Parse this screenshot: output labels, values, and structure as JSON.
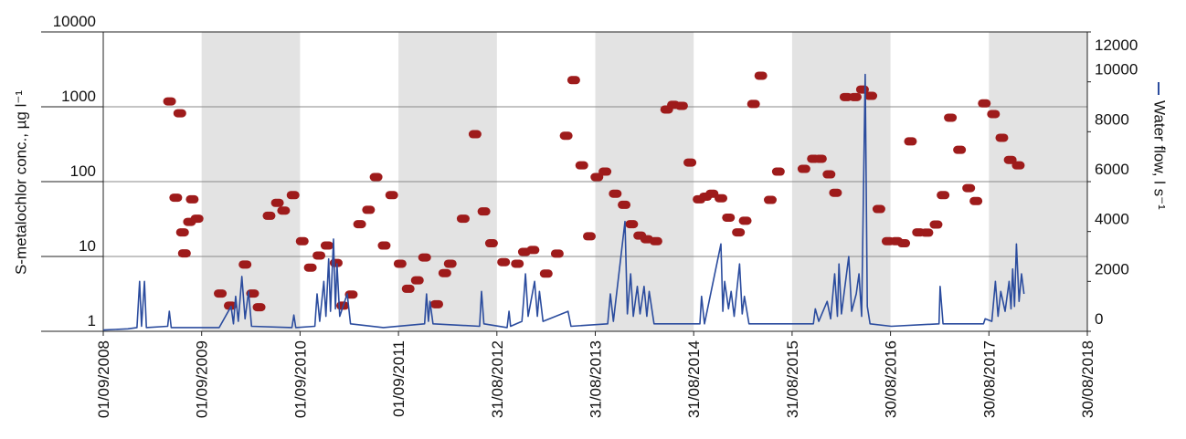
{
  "chart_data": {
    "type": "scatter",
    "y_label": "S-metalochlor conc., µg l⁻¹",
    "xlim": [
      "2008-09-01",
      "2018-08-30"
    ],
    "xticks": [
      {
        "value": "2008-09-01",
        "label": "01/09/2008"
      },
      {
        "value": "2009-09-01",
        "label": "01/09/2009"
      },
      {
        "value": "2010-09-01",
        "label": "01/09/2010"
      },
      {
        "value": "2011-09-01",
        "label": "01/09/2011"
      },
      {
        "value": "2012-08-31",
        "label": "31/08/2012"
      },
      {
        "value": "2013-08-31",
        "label": "31/08/2013"
      },
      {
        "value": "2014-08-31",
        "label": "31/08/2014"
      },
      {
        "value": "2015-08-31",
        "label": "31/08/2015"
      },
      {
        "value": "2016-08-30",
        "label": "30/08/2016"
      },
      {
        "value": "2017-08-30",
        "label": "30/08/2017"
      },
      {
        "value": "2018-08-30",
        "label": "30/08/2018"
      }
    ],
    "ylim": [
      1,
      10000
    ],
    "yticks": [
      1,
      10,
      100,
      1000,
      10000
    ],
    "log_y": true,
    "y2lim": [
      0,
      12000
    ],
    "y2ticks": [
      0,
      2000,
      4000,
      6000,
      8000,
      10000,
      12000
    ],
    "grid": true,
    "series": [
      {
        "type": "scatter",
        "color": "#9e1b1b",
        "x": [
          "2009-05-05",
          "2009-06-12",
          "2009-05-28",
          "2009-06-22",
          "2009-06-29",
          "2009-07-18",
          "2009-07-28",
          "2009-08-15",
          "2009-11-09",
          "2009-12-16",
          "2010-02-09",
          "2010-03-09",
          "2010-04-02",
          "2010-05-09",
          "2010-06-09",
          "2010-07-02",
          "2010-08-06",
          "2010-09-09",
          "2010-10-09",
          "2010-11-10",
          "2010-12-10",
          "2011-01-13",
          "2011-02-06",
          "2011-03-10",
          "2011-04-10",
          "2011-05-13",
          "2011-06-10",
          "2011-07-10",
          "2011-08-07",
          "2011-09-07",
          "2011-10-07",
          "2011-11-10",
          "2011-12-07",
          "2012-01-21",
          "2012-02-20",
          "2012-03-11",
          "2012-04-28",
          "2012-06-11",
          "2012-07-14",
          "2012-08-11",
          "2012-09-25",
          "2012-11-15",
          "2012-12-11",
          "2013-01-12",
          "2013-03-02",
          "2013-04-12",
          "2013-05-15",
          "2013-06-12",
          "2013-07-12",
          "2013-08-09",
          "2013-09-06",
          "2013-10-06",
          "2013-11-13",
          "2013-12-16",
          "2014-01-13",
          "2014-02-12",
          "2014-03-10",
          "2014-04-13",
          "2014-05-23",
          "2014-06-17",
          "2014-07-17",
          "2014-08-17",
          "2014-09-20",
          "2014-10-14",
          "2014-11-07",
          "2014-12-10",
          "2015-01-07",
          "2015-02-13",
          "2015-03-10",
          "2015-04-10",
          "2015-05-07",
          "2015-06-11",
          "2015-07-11",
          "2015-10-14",
          "2015-11-18",
          "2015-12-14",
          "2016-01-15",
          "2016-02-08",
          "2016-03-18",
          "2016-04-21",
          "2016-05-18",
          "2016-06-18",
          "2016-07-18",
          "2016-08-21",
          "2016-09-21",
          "2016-10-18",
          "2016-11-12",
          "2016-12-12",
          "2017-01-12",
          "2017-02-15",
          "2017-03-13",
          "2017-04-09",
          "2017-05-13",
          "2017-06-16",
          "2017-07-13",
          "2017-08-13",
          "2017-09-16",
          "2017-10-17",
          "2017-11-17",
          "2017-12-17"
        ],
        "values": [
          1180,
          820,
          61,
          21,
          11,
          29,
          58,
          32,
          3.2,
          2.2,
          7.8,
          3.2,
          2.1,
          35,
          52,
          41,
          66,
          16,
          7.1,
          10.3,
          14,
          8.2,
          2.2,
          3.1,
          27,
          42,
          115,
          14,
          66,
          8,
          3.7,
          4.8,
          9.7,
          2.3,
          6,
          8,
          32,
          430,
          40,
          15,
          8.4,
          8,
          11.5,
          12.2,
          5.9,
          10.9,
          410,
          2270,
          165,
          18.6,
          115,
          136,
          69,
          49,
          27,
          19,
          17,
          16,
          920,
          1060,
          1030,
          180,
          58,
          63,
          69,
          60,
          33,
          21,
          30,
          1090,
          2600,
          57,
          136,
          148,
          202,
          202,
          125,
          71,
          1350,
          1350,
          1700,
          1400,
          43,
          16,
          16,
          15,
          345,
          21,
          20.8,
          26.7,
          66,
          715,
          266,
          82,
          55,
          1110,
          800,
          385,
          195,
          165
        ]
      },
      {
        "type": "line",
        "name": "Water flow, l s⁻¹",
        "color": "#2b4c9e",
        "axis": "y2",
        "x": [
          "2008-09-01",
          "2008-12-01",
          "2009-01-04",
          "2009-01-14",
          "2009-01-21",
          "2009-02-01",
          "2009-02-08",
          "2009-04-28",
          "2009-05-04",
          "2009-05-11",
          "2009-11-05",
          "2009-12-19",
          "2009-12-28",
          "2010-01-05",
          "2010-01-15",
          "2010-01-28",
          "2010-02-09",
          "2010-02-22",
          "2010-03-05",
          "2010-08-02",
          "2010-08-09",
          "2010-08-16",
          "2010-10-26",
          "2010-11-03",
          "2010-11-13",
          "2010-11-28",
          "2010-12-06",
          "2010-12-16",
          "2010-12-23",
          "2011-01-03",
          "2011-01-10",
          "2011-01-16",
          "2011-01-26",
          "2011-02-23",
          "2011-03-07",
          "2011-07-07",
          "2011-12-07",
          "2011-12-14",
          "2011-12-21",
          "2011-12-27",
          "2012-01-07",
          "2012-06-28",
          "2012-07-05",
          "2012-07-14",
          "2012-10-08",
          "2012-10-15",
          "2012-10-21",
          "2012-12-02",
          "2012-12-08",
          "2012-12-15",
          "2012-12-25",
          "2013-01-18",
          "2013-01-28",
          "2013-02-05",
          "2013-02-18",
          "2013-05-22",
          "2013-06-02",
          "2013-10-16",
          "2013-10-26",
          "2013-11-06",
          "2013-12-19",
          "2013-12-28",
          "2014-01-09",
          "2014-01-19",
          "2014-02-03",
          "2014-02-13",
          "2014-02-28",
          "2014-03-10",
          "2014-03-19",
          "2014-04-06",
          "2014-09-23",
          "2014-09-29",
          "2014-10-10",
          "2014-12-10",
          "2014-12-17",
          "2014-12-24",
          "2015-01-07",
          "2015-01-17",
          "2015-01-28",
          "2015-02-17",
          "2015-02-27",
          "2015-03-07",
          "2015-03-24",
          "2015-11-18",
          "2015-11-25",
          "2015-12-08",
          "2016-01-08",
          "2016-01-21",
          "2016-02-05",
          "2016-02-15",
          "2016-02-21",
          "2016-03-01",
          "2016-03-28",
          "2016-04-08",
          "2016-04-25",
          "2016-05-05",
          "2016-05-15",
          "2016-05-28",
          "2016-06-05",
          "2016-06-15",
          "2016-09-02",
          "2017-02-26",
          "2017-03-02",
          "2017-03-13",
          "2017-08-10",
          "2017-08-16",
          "2017-09-10",
          "2017-09-23",
          "2017-10-03",
          "2017-10-13",
          "2017-10-29",
          "2017-11-13",
          "2017-11-20",
          "2017-11-26",
          "2017-12-03",
          "2017-12-10",
          "2017-12-20",
          "2017-12-29",
          "2018-01-07"
        ],
        "values": [
          50,
          100,
          150,
          2000,
          200,
          2000,
          150,
          200,
          800,
          150,
          150,
          1000,
          300,
          1400,
          400,
          2200,
          500,
          1600,
          200,
          150,
          650,
          150,
          200,
          1500,
          400,
          2000,
          600,
          2900,
          800,
          3700,
          900,
          2700,
          600,
          1500,
          300,
          150,
          300,
          1500,
          400,
          1200,
          300,
          200,
          1600,
          300,
          150,
          800,
          200,
          400,
          1200,
          2300,
          600,
          2000,
          600,
          1600,
          400,
          800,
          200,
          300,
          1500,
          400,
          4400,
          700,
          2300,
          600,
          1800,
          700,
          1800,
          600,
          1600,
          300,
          300,
          1400,
          300,
          3500,
          800,
          2000,
          900,
          1600,
          600,
          2700,
          700,
          1400,
          300,
          300,
          900,
          400,
          1200,
          500,
          2300,
          600,
          2700,
          700,
          3000,
          800,
          1500,
          2300,
          600,
          10300,
          1000,
          300,
          200,
          300,
          1800,
          300,
          300,
          500,
          400,
          2000,
          600,
          1600,
          800,
          2000,
          900,
          2500,
          1000,
          3500,
          1200,
          2300,
          1500
        ]
      }
    ]
  }
}
